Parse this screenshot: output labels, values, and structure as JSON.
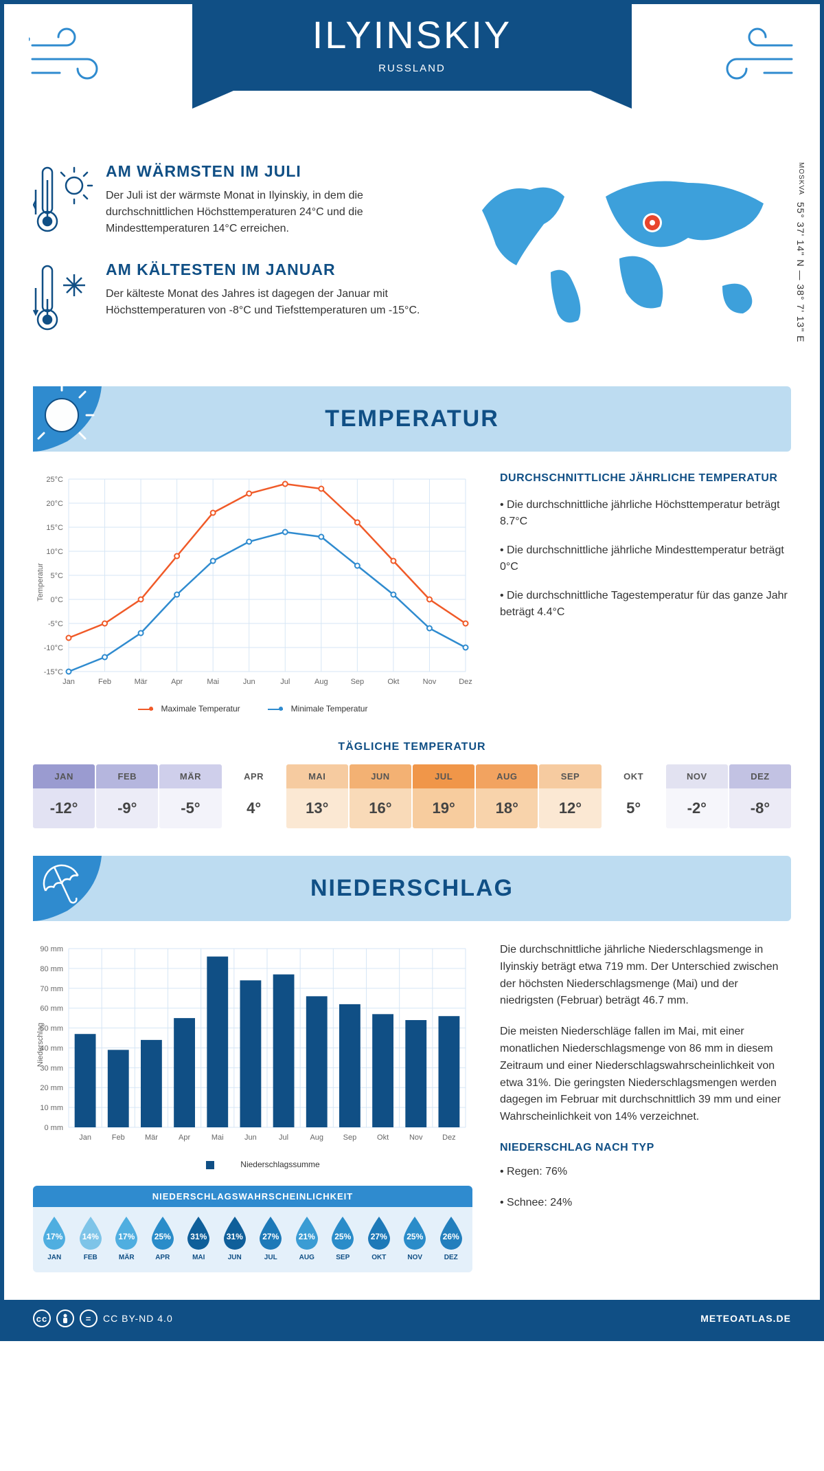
{
  "header": {
    "city": "ILYINSKIY",
    "country": "RUSSLAND"
  },
  "intro": {
    "warm_title": "AM WÄRMSTEN IM JULI",
    "warm_text": "Der Juli ist der wärmste Monat in Ilyinskiy, in dem die durchschnittlichen Höchsttemperaturen 24°C und die Mindesttemperaturen 14°C erreichen.",
    "cold_title": "AM KÄLTESTEN IM JANUAR",
    "cold_text": "Der kälteste Monat des Jahres ist dagegen der Januar mit Höchsttemperaturen von -8°C und Tiefsttemperaturen um -15°C.",
    "coords": "55° 37' 14\" N — 38° 7' 13\" E",
    "province": "MOSKVA"
  },
  "sections": {
    "temperature": "TEMPERATUR",
    "precipitation": "NIEDERSCHLAG"
  },
  "months_short": [
    "Jan",
    "Feb",
    "Mär",
    "Apr",
    "Mai",
    "Jun",
    "Jul",
    "Aug",
    "Sep",
    "Okt",
    "Nov",
    "Dez"
  ],
  "months_upper": [
    "JAN",
    "FEB",
    "MÄR",
    "APR",
    "MAI",
    "JUN",
    "JUL",
    "AUG",
    "SEP",
    "OKT",
    "NOV",
    "DEZ"
  ],
  "temp_chart": {
    "ylabel": "Temperatur",
    "ylim": [
      -15,
      25
    ],
    "ytick_step": 5,
    "max": [
      -8,
      -5,
      0,
      9,
      18,
      22,
      24,
      23,
      16,
      8,
      0,
      -5
    ],
    "min": [
      -15,
      -12,
      -7,
      1,
      8,
      12,
      14,
      13,
      7,
      1,
      -6,
      -10
    ],
    "max_color": "#f05a28",
    "min_color": "#2f8bcf",
    "grid_color": "#d6e6f5",
    "legend_max": "Maximale Temperatur",
    "legend_min": "Minimale Temperatur"
  },
  "temp_facts": {
    "heading": "DURCHSCHNITTLICHE JÄHRLICHE TEMPERATUR",
    "b1": "• Die durchschnittliche jährliche Höchsttemperatur beträgt 8.7°C",
    "b2": "• Die durchschnittliche jährliche Mindesttemperatur beträgt 0°C",
    "b3": "• Die durchschnittliche Tagestemperatur für das ganze Jahr beträgt 4.4°C"
  },
  "daily": {
    "heading": "TÄGLICHE TEMPERATUR",
    "values": [
      "-12°",
      "-9°",
      "-5°",
      "4°",
      "13°",
      "16°",
      "19°",
      "18°",
      "12°",
      "5°",
      "-2°",
      "-8°"
    ],
    "head_colors": [
      "#9a9bd0",
      "#b5b6de",
      "#cfcfeb",
      "#ffffff",
      "#f6cba0",
      "#f3b173",
      "#f09649",
      "#f2a360",
      "#f6cba0",
      "#ffffff",
      "#e2e2f1",
      "#c2c2e3"
    ],
    "body_colors": [
      "#e2e2f3",
      "#ececf7",
      "#f3f3fa",
      "#ffffff",
      "#fbe8d3",
      "#f9dab8",
      "#f7cc9e",
      "#f8d3ab",
      "#fbe8d3",
      "#ffffff",
      "#f6f6fb",
      "#ecebf6"
    ]
  },
  "precip_chart": {
    "ylabel": "Niederschlag",
    "ylim": [
      0,
      90
    ],
    "ytick_step": 10,
    "values": [
      47,
      39,
      44,
      55,
      86,
      74,
      77,
      66,
      62,
      57,
      54,
      56
    ],
    "bar_color": "#104f85",
    "grid_color": "#d6e6f5",
    "legend": "Niederschlagssumme"
  },
  "precip_text": {
    "p1": "Die durchschnittliche jährliche Niederschlagsmenge in Ilyinskiy beträgt etwa 719 mm. Der Unterschied zwischen der höchsten Niederschlagsmenge (Mai) und der niedrigsten (Februar) beträgt 46.7 mm.",
    "p2": "Die meisten Niederschläge fallen im Mai, mit einer monatlichen Niederschlagsmenge von 86 mm in diesem Zeitraum und einer Niederschlagswahrscheinlichkeit von etwa 31%. Die geringsten Niederschlagsmengen werden dagegen im Februar mit durchschnittlich 39 mm und einer Wahrscheinlichkeit von 14% verzeichnet.",
    "type_heading": "NIEDERSCHLAG NACH TYP",
    "rain": "• Regen: 76%",
    "snow": "• Schnee: 24%"
  },
  "prob": {
    "heading": "NIEDERSCHLAGSWAHRSCHEINLICHKEIT",
    "values": [
      "17%",
      "14%",
      "17%",
      "25%",
      "31%",
      "31%",
      "27%",
      "21%",
      "25%",
      "27%",
      "25%",
      "26%"
    ],
    "colors": [
      "#4faee0",
      "#7ec4e8",
      "#4faee0",
      "#2a8cc9",
      "#0f5f9a",
      "#0f5f9a",
      "#1d79b8",
      "#3a9cd4",
      "#2a8cc9",
      "#1d79b8",
      "#2a8cc9",
      "#237fbd"
    ]
  },
  "footer": {
    "license": "CC BY-ND 4.0",
    "site": "METEOATLAS.DE"
  }
}
